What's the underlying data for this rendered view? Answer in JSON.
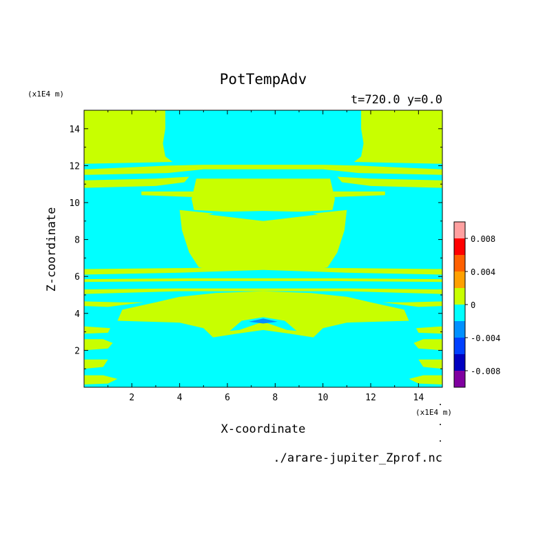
{
  "chart_data": {
    "type": "heatmap",
    "title": "PotTempAdv",
    "subtitle": "t=720.0  y=0.0",
    "xlabel": "X-coordinate",
    "ylabel": "Z-coordinate",
    "x_unit": "(x1E4 m)",
    "y_unit": "(x1E4 m)",
    "source_file": "./arare-jupiter_Zprof.nc",
    "xlim": [
      0,
      15
    ],
    "ylim": [
      0,
      15
    ],
    "x_ticks": [
      2,
      4,
      6,
      8,
      10,
      12,
      14
    ],
    "y_ticks": [
      2,
      4,
      6,
      8,
      10,
      12,
      14
    ],
    "x_tick_labels": [
      "2",
      "4",
      "6",
      "8",
      "10",
      "12",
      "14"
    ],
    "y_tick_labels": [
      "2",
      "4",
      "6",
      "8",
      "10",
      "12",
      "14"
    ],
    "colorbar": {
      "levels": [
        -0.01,
        -0.008,
        -0.006,
        -0.004,
        -0.002,
        0,
        0.002,
        0.004,
        0.006,
        0.008,
        0.01
      ],
      "colors": [
        "#8000a0",
        "#0000c0",
        "#0040ff",
        "#0090ff",
        "#00ffff",
        "#c8ff00",
        "#ffa000",
        "#ff6000",
        "#ff0000",
        "#ffa0a0"
      ],
      "tick_values": [
        -0.008,
        -0.004,
        0,
        0.004,
        0.008
      ],
      "tick_labels": [
        "-0.008",
        "-0.004",
        "0",
        "0.004",
        "0.008"
      ]
    },
    "regions": [
      {
        "name": "background",
        "level": "-0.002..0",
        "color": "#00ffff",
        "points": [
          [
            0,
            0
          ],
          [
            15,
            0
          ],
          [
            15,
            15
          ],
          [
            0,
            15
          ]
        ]
      },
      {
        "name": "top-left",
        "level": "0..0.002",
        "color": "#c8ff00",
        "points": [
          [
            0,
            12.1
          ],
          [
            0,
            15
          ],
          [
            3.4,
            15
          ],
          [
            3.4,
            14
          ],
          [
            3.3,
            13.2
          ],
          [
            3.4,
            12.5
          ],
          [
            3.7,
            12.2
          ]
        ]
      },
      {
        "name": "top-right",
        "level": "0..0.002",
        "color": "#c8ff00",
        "points": [
          [
            15,
            12.1
          ],
          [
            15,
            15
          ],
          [
            11.6,
            15
          ],
          [
            11.6,
            14
          ],
          [
            11.7,
            13.2
          ],
          [
            11.6,
            12.5
          ],
          [
            11.3,
            12.2
          ]
        ]
      },
      {
        "name": "band-12",
        "level": "0..0.002",
        "color": "#c8ff00",
        "points": [
          [
            0,
            11.5
          ],
          [
            3.5,
            11.6
          ],
          [
            5,
            11.8
          ],
          [
            10,
            11.8
          ],
          [
            11.5,
            11.6
          ],
          [
            15,
            11.5
          ],
          [
            15,
            11.8
          ],
          [
            11.5,
            12
          ],
          [
            10,
            12.05
          ],
          [
            5,
            12.05
          ],
          [
            3.5,
            12
          ],
          [
            0,
            11.8
          ]
        ]
      },
      {
        "name": "band-11",
        "level": "0..0.002",
        "color": "#c8ff00",
        "points": [
          [
            0,
            10.8
          ],
          [
            3,
            10.9
          ],
          [
            4.2,
            11.1
          ],
          [
            4.4,
            11.4
          ],
          [
            3,
            11.3
          ],
          [
            0,
            11.2
          ]
        ]
      },
      {
        "name": "band-11-right",
        "level": "0..0.002",
        "color": "#c8ff00",
        "points": [
          [
            15,
            10.8
          ],
          [
            12,
            10.9
          ],
          [
            10.8,
            11.1
          ],
          [
            10.6,
            11.4
          ],
          [
            12,
            11.3
          ],
          [
            15,
            11.2
          ]
        ]
      },
      {
        "name": "upper-middle-box",
        "level": "0..0.002",
        "color": "#c8ff00",
        "points": [
          [
            4.7,
            11.3
          ],
          [
            10.3,
            11.3
          ],
          [
            10.5,
            10.2
          ],
          [
            10.4,
            9.6
          ],
          [
            7.5,
            9.4
          ],
          [
            4.6,
            9.6
          ],
          [
            4.5,
            10.2
          ]
        ]
      },
      {
        "name": "left-shelf",
        "level": "0..0.002",
        "color": "#c8ff00",
        "points": [
          [
            2.4,
            10.4
          ],
          [
            4.6,
            10.3
          ],
          [
            4.6,
            10.6
          ],
          [
            2.4,
            10.6
          ]
        ]
      },
      {
        "name": "right-shelf",
        "level": "0..0.002",
        "color": "#c8ff00",
        "points": [
          [
            12.6,
            10.4
          ],
          [
            10.4,
            10.3
          ],
          [
            10.4,
            10.6
          ],
          [
            12.6,
            10.6
          ]
        ]
      },
      {
        "name": "bowl",
        "level": "0..0.002",
        "color": "#c8ff00",
        "points": [
          [
            4,
            9.6
          ],
          [
            5.5,
            9.4
          ],
          [
            7.5,
            9.25
          ],
          [
            9.5,
            9.4
          ],
          [
            11,
            9.6
          ],
          [
            10.9,
            8.5
          ],
          [
            10.6,
            7.3
          ],
          [
            10.2,
            6.5
          ],
          [
            9.5,
            6.3
          ],
          [
            7.5,
            6.4
          ],
          [
            5.5,
            6.3
          ],
          [
            4.8,
            6.5
          ],
          [
            4.4,
            7.3
          ],
          [
            4.1,
            8.5
          ]
        ]
      },
      {
        "name": "band-6",
        "level": "0..0.002",
        "color": "#c8ff00",
        "points": [
          [
            0,
            6.1
          ],
          [
            4,
            6.2
          ],
          [
            7.5,
            6.35
          ],
          [
            11,
            6.2
          ],
          [
            15,
            6.1
          ],
          [
            15,
            6.4
          ],
          [
            11,
            6.45
          ],
          [
            7.5,
            6.5
          ],
          [
            4,
            6.45
          ],
          [
            0,
            6.4
          ]
        ]
      },
      {
        "name": "band-5-7",
        "level": "0..0.002",
        "color": "#c8ff00",
        "points": [
          [
            0,
            5.7
          ],
          [
            4.5,
            5.75
          ],
          [
            10.5,
            5.75
          ],
          [
            15,
            5.7
          ],
          [
            15,
            5.85
          ],
          [
            10.5,
            5.9
          ],
          [
            4.5,
            5.9
          ],
          [
            0,
            5.85
          ]
        ]
      },
      {
        "name": "band-5-2",
        "level": "0..0.002",
        "color": "#c8ff00",
        "points": [
          [
            0,
            5.05
          ],
          [
            4,
            5.2
          ],
          [
            11,
            5.2
          ],
          [
            15,
            5.05
          ],
          [
            15,
            5.3
          ],
          [
            11,
            5.35
          ],
          [
            4,
            5.35
          ],
          [
            0,
            5.3
          ]
        ]
      },
      {
        "name": "lower-dome",
        "level": "0..0.002",
        "color": "#c8ff00",
        "points": [
          [
            1.4,
            3.6
          ],
          [
            1.6,
            4.2
          ],
          [
            3,
            4.6
          ],
          [
            4,
            4.9
          ],
          [
            5.5,
            5.1
          ],
          [
            7.5,
            5.2
          ],
          [
            9.5,
            5.1
          ],
          [
            11,
            4.9
          ],
          [
            12,
            4.6
          ],
          [
            13.4,
            4.2
          ],
          [
            13.6,
            3.6
          ],
          [
            11,
            3.5
          ],
          [
            10,
            3.2
          ],
          [
            9.6,
            2.7
          ],
          [
            8.6,
            2.9
          ],
          [
            7.5,
            3.1
          ],
          [
            6.4,
            2.9
          ],
          [
            5.4,
            2.7
          ],
          [
            5,
            3.2
          ],
          [
            4,
            3.5
          ]
        ]
      },
      {
        "name": "lower-left-wisp",
        "level": "0..0.002",
        "color": "#c8ff00",
        "points": [
          [
            0,
            4.4
          ],
          [
            1,
            4.35
          ],
          [
            2.5,
            4.6
          ],
          [
            1.5,
            4.6
          ],
          [
            0,
            4.65
          ]
        ]
      },
      {
        "name": "lower-right-wisp",
        "level": "0..0.002",
        "color": "#c8ff00",
        "points": [
          [
            15,
            4.4
          ],
          [
            14,
            4.35
          ],
          [
            12.5,
            4.6
          ],
          [
            13.5,
            4.6
          ],
          [
            15,
            4.65
          ]
        ]
      },
      {
        "name": "left-stripe-1",
        "level": "0..0.002",
        "color": "#c8ff00",
        "points": [
          [
            0,
            2.9
          ],
          [
            1,
            2.95
          ],
          [
            1.1,
            3.2
          ],
          [
            0,
            3.3
          ]
        ]
      },
      {
        "name": "left-stripe-2",
        "level": "0..0.002",
        "color": "#c8ff00",
        "points": [
          [
            0,
            2
          ],
          [
            1,
            2.1
          ],
          [
            1.2,
            2.4
          ],
          [
            0.8,
            2.6
          ],
          [
            0,
            2.6
          ]
        ]
      },
      {
        "name": "left-stripe-3",
        "level": "0..0.002",
        "color": "#c8ff00",
        "points": [
          [
            0,
            1
          ],
          [
            0.8,
            1.1
          ],
          [
            1,
            1.5
          ],
          [
            0,
            1.5
          ]
        ]
      },
      {
        "name": "left-stripe-4",
        "level": "0..0.002",
        "color": "#c8ff00",
        "points": [
          [
            0,
            0.15
          ],
          [
            1,
            0.2
          ],
          [
            1.4,
            0.45
          ],
          [
            0.8,
            0.65
          ],
          [
            0,
            0.65
          ]
        ]
      },
      {
        "name": "right-stripe-1",
        "level": "0..0.002",
        "color": "#c8ff00",
        "points": [
          [
            15,
            2.9
          ],
          [
            14,
            2.95
          ],
          [
            13.9,
            3.2
          ],
          [
            15,
            3.3
          ]
        ]
      },
      {
        "name": "right-stripe-2",
        "level": "0..0.002",
        "color": "#c8ff00",
        "points": [
          [
            15,
            2
          ],
          [
            14,
            2.1
          ],
          [
            13.8,
            2.4
          ],
          [
            14.2,
            2.6
          ],
          [
            15,
            2.6
          ]
        ]
      },
      {
        "name": "right-stripe-3",
        "level": "0..0.002",
        "color": "#c8ff00",
        "points": [
          [
            15,
            1
          ],
          [
            14.2,
            1.1
          ],
          [
            14,
            1.5
          ],
          [
            15,
            1.5
          ]
        ]
      },
      {
        "name": "right-stripe-4",
        "level": "0..0.002",
        "color": "#c8ff00",
        "points": [
          [
            15,
            0.15
          ],
          [
            14,
            0.2
          ],
          [
            13.6,
            0.45
          ],
          [
            14.2,
            0.65
          ],
          [
            15,
            0.65
          ]
        ]
      },
      {
        "name": "cyan-inner-bowl",
        "level": "-0.002..0",
        "color": "#00ffff",
        "points": [
          [
            5.2,
            9.35
          ],
          [
            7.5,
            9.0
          ],
          [
            9.8,
            9.35
          ],
          [
            9.2,
            9.5
          ],
          [
            7.5,
            9.55
          ],
          [
            5.8,
            9.5
          ]
        ]
      },
      {
        "name": "cyan-lens",
        "level": "-0.002..0",
        "color": "#00ffff",
        "points": [
          [
            6.5,
            3.1
          ],
          [
            7.5,
            3.55
          ],
          [
            8.5,
            3.1
          ],
          [
            8.9,
            3.05
          ],
          [
            8.4,
            3.6
          ],
          [
            7.5,
            3.8
          ],
          [
            6.6,
            3.6
          ],
          [
            6.1,
            3.05
          ]
        ]
      },
      {
        "name": "blue-spot",
        "level": "-0.004..-0.002",
        "color": "#0090ff",
        "points": [
          [
            6.9,
            3.55
          ],
          [
            7.5,
            3.45
          ],
          [
            8.1,
            3.55
          ],
          [
            7.5,
            3.72
          ]
        ]
      }
    ]
  }
}
